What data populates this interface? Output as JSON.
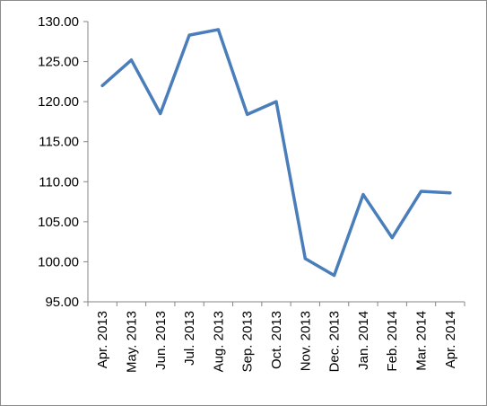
{
  "chart_data": {
    "type": "line",
    "title": "",
    "xlabel": "",
    "ylabel": "",
    "categories": [
      "Apr. 2013",
      "May. 2013",
      "Jun. 2013",
      "Jul. 2013",
      "Aug. 2013",
      "Sep. 2013",
      "Oct. 2013",
      "Nov. 2013",
      "Dec. 2013",
      "Jan. 2014",
      "Feb. 2014",
      "Mar. 2014",
      "Apr. 2014"
    ],
    "series": [
      {
        "values": [
          122.0,
          125.2,
          118.5,
          128.3,
          129.0,
          118.4,
          120.0,
          100.4,
          98.3,
          108.4,
          103.0,
          108.8,
          108.6
        ],
        "color": "#4a7ebb"
      }
    ],
    "ylim": [
      95.0,
      130.0
    ],
    "yticks": [
      "95.00",
      "100.00",
      "105.00",
      "110.00",
      "115.00",
      "120.00",
      "125.00",
      "130.00"
    ],
    "grid": false,
    "legend": "none"
  }
}
